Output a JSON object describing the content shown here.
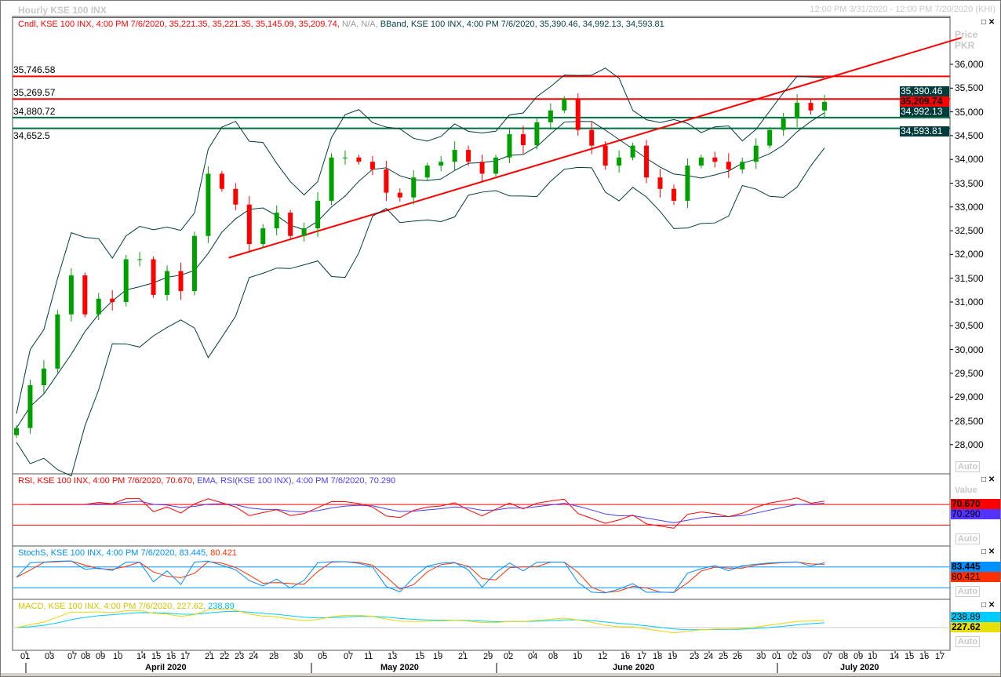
{
  "header": {
    "title": "Hourly KSE 100 INX",
    "range": "12:00 PM 3/31/2020 - 12:00 PM 7/20/2020 (KHI)"
  },
  "legends": {
    "candle": "Cndl, KSE 100 INX, 4:00 PM 7/6/2020, 35,221.35, 35,221.35, 35,145.09, 35,209.74,",
    "candle_na": "N/A, N/A,",
    "bband": "BBand, KSE 100 INX, 4:00 PM 7/6/2020, 35,390.46, 34,992.13, 34,593.81",
    "rsi": "RSI, KSE 100 INX, 4:00 PM 7/6/2020, 70.670,",
    "ema": "EMA, RSI(KSE 100 INX), 4:00 PM 7/6/2020, 70.290",
    "stoch": "StochS, KSE 100 INX, 4:00 PM 7/6/2020, 83.445,",
    "stoch2": "80.421",
    "macd": "MACD, KSE 100 INX, 4:00 PM 7/6/2020, 227.62,",
    "macd2": "238.89"
  },
  "axis_labels": {
    "price": "Price",
    "unit": "PKR",
    "value": "Value",
    "auto": "Auto"
  },
  "tags": {
    "bb_upper": "35,390.46",
    "close": "35,209.74",
    "bb_mid": "34,992.13",
    "bb_lower": "34,593.81",
    "rsi": "70.670",
    "ema": "70.290",
    "stoch_k": "83.445",
    "stoch_d": "80.421",
    "macd_signal": "238.89",
    "macd": "227.62"
  },
  "colors": {
    "up": "#00a000",
    "down": "#ff0000",
    "band": "#003c3c",
    "level_red": "#ff0000",
    "level_green": "#007040",
    "rsi": "#ff0000",
    "ema": "#4a3cff",
    "stoch_k": "#0090ff",
    "stoch_d": "#ff3000",
    "macd": "#e8d800",
    "signal": "#00ccff"
  },
  "chart_data": {
    "type": "candlestick",
    "title": "Hourly KSE 100 INX",
    "ylabel": "Price PKR",
    "ylim": [
      27600,
      36600
    ],
    "yticks": [
      "36,000",
      "35,500",
      "35,000",
      "34,500",
      "34,000",
      "33,500",
      "33,000",
      "32,500",
      "32,000",
      "31,500",
      "31,000",
      "30,500",
      "30,000",
      "29,500",
      "29,000",
      "28,500",
      "28,000"
    ],
    "closes": [
      28350,
      29250,
      29600,
      30740,
      31560,
      30740,
      31070,
      31000,
      31900,
      31900,
      31150,
      31650,
      31230,
      32390,
      33700,
      33380,
      33050,
      32220,
      32550,
      32880,
      32390,
      32550,
      33130,
      34040,
      34040,
      33950,
      33790,
      33300,
      33200,
      33620,
      33870,
      33950,
      34200,
      33950,
      33700,
      34040,
      34530,
      34300,
      34780,
      35030,
      35270,
      34620,
      34290,
      33870,
      34040,
      34290,
      33620,
      33380,
      33130,
      33870,
      34040,
      33950,
      33790,
      33950,
      34290,
      34620,
      34860,
      35190,
      35030,
      35209.74
    ],
    "levels": [
      {
        "label": "35,746.58",
        "value": 35746.58,
        "color": "red"
      },
      {
        "label": "35,269.57",
        "value": 35269.57,
        "color": "red"
      },
      {
        "label": "34,880.72",
        "value": 34880.72,
        "color": "green"
      },
      {
        "label": "34,652.5",
        "value": 34652.5,
        "color": "green"
      }
    ],
    "trendline": {
      "from_index": 15.5,
      "from_price": 31930,
      "to_index": 69,
      "to_price": 36560
    },
    "rsi_levels": [
      70,
      30
    ],
    "stoch_levels": [
      80,
      20
    ],
    "days": [
      "01",
      "03",
      "07",
      "08",
      "09",
      "10",
      "14",
      "15",
      "16",
      "17",
      "21",
      "22",
      "23",
      "24",
      "28",
      "30",
      "05",
      "07",
      "11",
      "13",
      "15",
      "19",
      "21",
      "29",
      "02",
      "04",
      "08",
      "10",
      "12",
      "16",
      "17",
      "18",
      "19",
      "23",
      "24",
      "25",
      "26",
      "30",
      "01",
      "02",
      "03",
      "07",
      "08",
      "09",
      "10",
      "14",
      "15",
      "16",
      "17"
    ],
    "months": [
      "April 2020",
      "May 2020",
      "June 2020",
      "July 2020"
    ]
  }
}
